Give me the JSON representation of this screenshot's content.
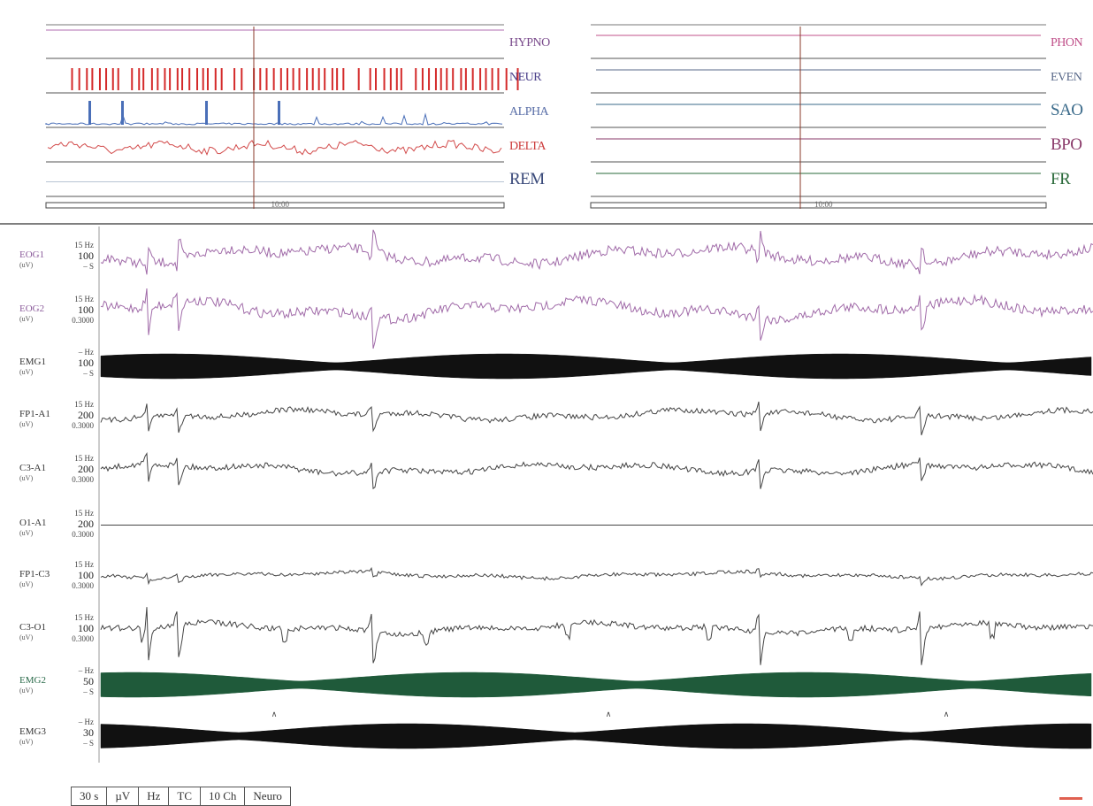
{
  "overview": {
    "left": {
      "tracks": [
        {
          "id": "hypno",
          "label": "HYPNO",
          "color": "#7a4b8c",
          "big": false
        },
        {
          "id": "neur",
          "label": "NEUR",
          "color": "#4a3f8a",
          "big": false
        },
        {
          "id": "alpha",
          "label": "ALPHA",
          "color": "#5a6fa8",
          "big": false
        },
        {
          "id": "delta",
          "label": "DELTA",
          "color": "#cc3a3a",
          "big": false
        },
        {
          "id": "rem",
          "label": "REM",
          "color": "#3a4a7a",
          "big": true
        }
      ],
      "timebar": "10:00"
    },
    "right": {
      "tracks": [
        {
          "id": "phon",
          "label": "PHON",
          "color": "#c0508a",
          "big": false
        },
        {
          "id": "even",
          "label": "EVEN",
          "color": "#5a6a8a",
          "big": false
        },
        {
          "id": "sao",
          "label": "SAO",
          "color": "#3a6a8a",
          "big": true
        },
        {
          "id": "bpo",
          "label": "BPO",
          "color": "#8a3a6a",
          "big": true
        },
        {
          "id": "fr",
          "label": "FR",
          "color": "#2a6a3a",
          "big": true
        }
      ],
      "timebar": "10:00"
    }
  },
  "channels": [
    {
      "id": "eog1",
      "label": "EOG1",
      "unit": "(uV)",
      "scale_top": "15 Hz",
      "scale_mid": "100",
      "scale_bot": "– S",
      "color": "#a06aa8",
      "type": "eog1"
    },
    {
      "id": "eog2",
      "label": "EOG2",
      "unit": "(uV)",
      "scale_top": "15 Hz",
      "scale_mid": "100",
      "scale_bot": "0.3000",
      "color": "#a06aa8",
      "type": "eog2"
    },
    {
      "id": "emg1",
      "label": "EMG1",
      "unit": "(uV)",
      "scale_top": "– Hz",
      "scale_mid": "100",
      "scale_bot": "– S",
      "color": "#111111",
      "type": "emg"
    },
    {
      "id": "fp1a1",
      "label": "FP1-A1",
      "unit": "(uV)",
      "scale_top": "15 Hz",
      "scale_mid": "200",
      "scale_bot": "0.3000",
      "color": "#444444",
      "type": "eeg_big"
    },
    {
      "id": "c3a1",
      "label": "C3-A1",
      "unit": "(uV)",
      "scale_top": "15 Hz",
      "scale_mid": "200",
      "scale_bot": "0.3000",
      "color": "#444444",
      "type": "eeg_big"
    },
    {
      "id": "o1a1",
      "label": "O1-A1",
      "unit": "(uV)",
      "scale_top": "15 Hz",
      "scale_mid": "200",
      "scale_bot": "0.3000",
      "color": "#444444",
      "type": "flat"
    },
    {
      "id": "fp1c3",
      "label": "FP1-C3",
      "unit": "(uV)",
      "scale_top": "15 Hz",
      "scale_mid": "100",
      "scale_bot": "0.3000",
      "color": "#444444",
      "type": "eeg_small"
    },
    {
      "id": "c3o1",
      "label": "C3-O1",
      "unit": "(uV)",
      "scale_top": "15 Hz",
      "scale_mid": "100",
      "scale_bot": "0.3000",
      "color": "#444444",
      "type": "eeg_huge"
    },
    {
      "id": "emg2",
      "label": "EMG2",
      "unit": "(uV)",
      "scale_top": "– Hz",
      "scale_mid": "50",
      "scale_bot": "– S",
      "color": "#1f5a3a",
      "type": "emg"
    },
    {
      "id": "emg3",
      "label": "EMG3",
      "unit": "(uV)",
      "scale_top": "– Hz",
      "scale_mid": "30",
      "scale_bot": "– S",
      "color": "#111111",
      "type": "emg"
    }
  ],
  "toolbar": {
    "buttons": [
      "30 s",
      "µV",
      "Hz",
      "TC",
      "10 Ch",
      "Neuro"
    ]
  },
  "colors": {
    "cursor": "#8a3a2a",
    "divider": "#555555",
    "neur_bar": "#d42a2a",
    "alpha_bar": "#4a6fb8",
    "delta_line": "#d24a4a"
  }
}
